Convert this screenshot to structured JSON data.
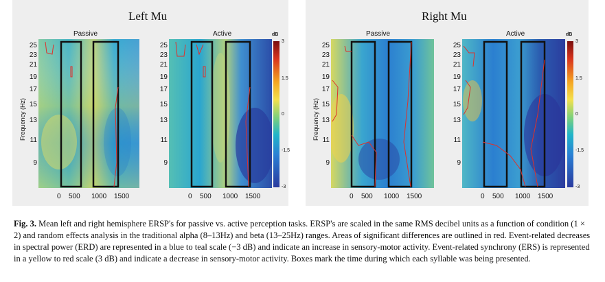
{
  "figure": {
    "groups": [
      {
        "title": "Left Mu",
        "panels": [
          "Passive",
          "Active"
        ]
      },
      {
        "title": "Right Mu",
        "panels": [
          "Passive",
          "Active"
        ]
      }
    ],
    "y_axis_label": "Frequency (Hz)",
    "y_ticks": [
      "25",
      "23",
      "21",
      "19",
      "17",
      "15",
      "13",
      "11",
      "9"
    ],
    "x_ticks": [
      "0",
      "500",
      "1000",
      "1500"
    ],
    "colorbar_label": "dB",
    "colorbar_ticks": [
      "3",
      "1.5",
      "0",
      "-1.5",
      "-3"
    ],
    "colors": {
      "high": "#8b0000",
      "mid": "#f4e04d",
      "neutral": "#21b5c9",
      "low": "#2a3a9e",
      "outline": "#e0302a"
    }
  },
  "caption": {
    "label": "Fig. 3.",
    "text": "Mean left and right hemisphere ERSP's for passive vs. active perception tasks. ERSP's are scaled in the same RMS decibel units as a function of condition (1 × 2) and random effects analysis in the traditional alpha (8–13Hz) and beta (13–25Hz) ranges. Areas of significant differences are outlined in red. Event-related decreases in spectral power (ERD) are represented in a blue to teal scale (−3 dB) and indicate an increase in sensory-motor activity. Event-related synchrony (ERS) is represented in a yellow to red scale (3 dB) and indicate a decrease in sensory-motor activity. Boxes mark the time during which each syllable was being presented."
  }
}
